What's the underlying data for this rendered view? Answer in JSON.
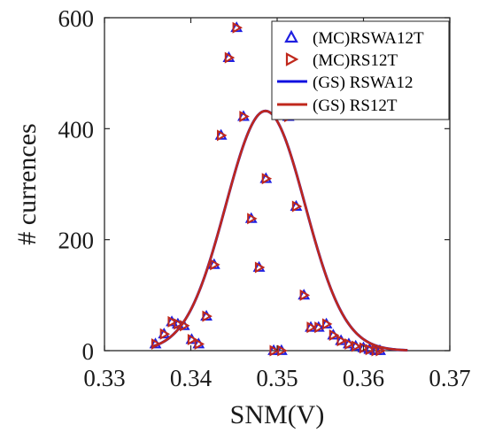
{
  "chart_data": {
    "type": "scatter",
    "xlabel": "SNM(V)",
    "ylabel": "# currences",
    "xlim": [
      0.33,
      0.37
    ],
    "ylim": [
      0,
      600
    ],
    "x_ticks": [
      "0.33",
      "0.34",
      "0.35",
      "0.36",
      "0.37"
    ],
    "y_ticks": [
      "0",
      "200",
      "400",
      "600"
    ],
    "x_tick_values": [
      0.33,
      0.34,
      0.35,
      0.36,
      0.37
    ],
    "y_tick_values": [
      0,
      200,
      400,
      600
    ],
    "grid": false,
    "legend_position": "top-right",
    "legend": [
      {
        "label": "(MC)RSWA12T",
        "marker": "triangle-up",
        "color": "#1f1fe0"
      },
      {
        "label": "(MC)RS12T",
        "marker": "triangle-right",
        "color": "#c0281c"
      },
      {
        "label": "(GS) RSWA12",
        "line": true,
        "color": "#1010e0"
      },
      {
        "label": "(GS) RS12T",
        "line": true,
        "color": "#c0281c"
      }
    ],
    "scatter": {
      "x": [
        0.3359,
        0.3369,
        0.3378,
        0.3385,
        0.3392,
        0.3401,
        0.3409,
        0.3418,
        0.3427,
        0.3435,
        0.3444,
        0.3453,
        0.3461,
        0.347,
        0.3479,
        0.3487,
        0.3496,
        0.3505,
        0.3513,
        0.3522,
        0.3531,
        0.3539,
        0.3548,
        0.3557,
        0.3565,
        0.3574,
        0.3583,
        0.3591,
        0.36,
        0.3607,
        0.3614,
        0.3619
      ],
      "y": [
        12,
        30,
        52,
        48,
        45,
        20,
        12,
        62,
        155,
        388,
        528,
        582,
        422,
        238,
        150,
        310,
        0,
        0,
        422,
        260,
        100,
        42,
        42,
        48,
        28,
        18,
        12,
        8,
        5,
        2,
        0,
        0
      ]
    },
    "series": [
      {
        "name": "(GS) RSWA12",
        "color": "#1010e0",
        "mu": 0.34865,
        "sigma": 0.0046,
        "peak": 432,
        "xrange": [
          0.3355,
          0.3651
        ]
      },
      {
        "name": "(GS) RS12T",
        "color": "#c0281c",
        "mu": 0.34865,
        "sigma": 0.0046,
        "peak": 432,
        "xrange": [
          0.3355,
          0.3651
        ]
      }
    ]
  }
}
